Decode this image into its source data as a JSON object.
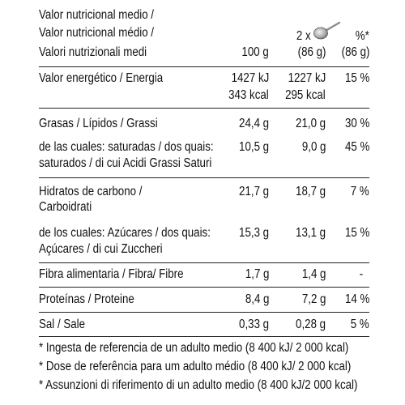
{
  "header": {
    "lines": [
      "Valor nutricional medio /",
      "Valor nutricional médio /",
      "Valori nutrizionali medi"
    ],
    "portion_prefix": "2 x",
    "pct_star": "%*",
    "col_100": "100 g",
    "col_86": "(86 g)",
    "col_pct": "(86 g)"
  },
  "rows": [
    {
      "label": [
        "Valor energético / Energia"
      ],
      "v100": [
        "1427 kJ",
        "343 kcal"
      ],
      "v86": [
        "1227 kJ",
        "295 kcal"
      ],
      "pct": "15 %"
    },
    {
      "label": [
        "Grasas / Lípidos / Grassi"
      ],
      "v100": [
        "24,4 g"
      ],
      "v86": [
        "21,0 g"
      ],
      "pct": "30 %"
    },
    {
      "label": [
        "de las cuales: saturadas / dos quais:",
        "saturados /  di cui Acidi Grassi Saturi"
      ],
      "v100": [
        "10,5 g"
      ],
      "v86": [
        "9,0 g"
      ],
      "pct": "45 %"
    },
    {
      "label": [
        "Hidratos de carbono /",
        "Carboidrati"
      ],
      "v100": [
        "21,7 g"
      ],
      "v86": [
        "18,7 g"
      ],
      "pct": "7 %"
    },
    {
      "label": [
        "de los cuales: Azúcares / dos quais:",
        "Açúcares / di cui Zuccheri"
      ],
      "v100": [
        "15,3 g"
      ],
      "v86": [
        "13,1 g"
      ],
      "pct": "15 %"
    },
    {
      "label": [
        "Fibra alimentaria / Fibra/ Fibre"
      ],
      "v100": [
        "1,7 g"
      ],
      "v86": [
        "1,4 g"
      ],
      "pct": "-"
    },
    {
      "label": [
        "Proteínas / Proteine"
      ],
      "v100": [
        "8,4 g"
      ],
      "v86": [
        "7,2 g"
      ],
      "pct": "14 %"
    },
    {
      "label": [
        "Sal / Sale"
      ],
      "v100": [
        "0,33 g"
      ],
      "v86": [
        "0,28 g"
      ],
      "pct": "5 %"
    }
  ],
  "footnotes": [
    "* Ingesta de referencia de un adulto medio (8 400 kJ/ 2 000 kcal)",
    "* Dose de referência para um adulto médio (8 400 kJ/ 2 000 kcal)",
    "* Assunzioni di riferimento di un adulto medio (8 400 kJ/2 000 kcal)"
  ],
  "icons": {
    "portion": "spoon-icon"
  }
}
